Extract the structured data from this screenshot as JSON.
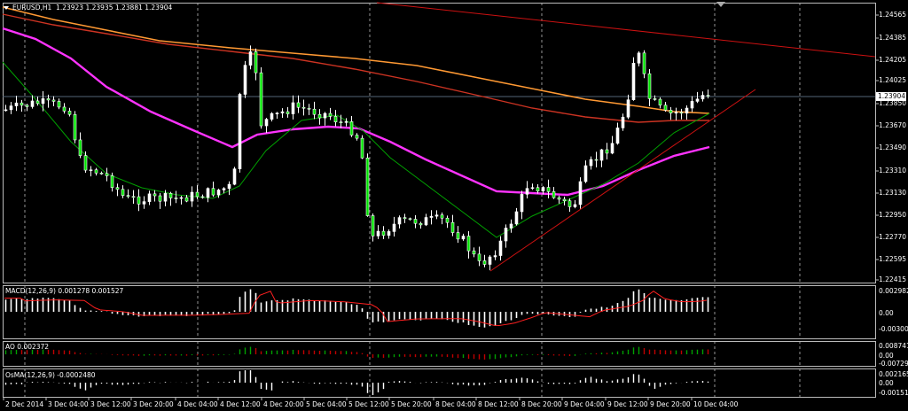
{
  "main": {
    "symbol": "EURUSD,H1",
    "ohlc": "1.23923 1.23935 1.23881 1.23904",
    "current_price": "1.23904",
    "y_labels": [
      "1.24565",
      "1.24385",
      "1.24205",
      "1.24025",
      "1.23850",
      "1.23670",
      "1.23490",
      "1.23310",
      "1.23130",
      "1.22950",
      "1.22770",
      "1.22595",
      "1.22415"
    ]
  },
  "macd": {
    "title": "MACD(12,26,9) 0.001278 0.001527",
    "y_labels": [
      "0.002982",
      "0.00",
      "-0.003004"
    ]
  },
  "ao": {
    "title": "AO 0.002372",
    "y_labels": [
      "0.008741",
      "0.00",
      "-0.007296"
    ]
  },
  "osma": {
    "title": "OsMA(12,26,9) -0.0002480",
    "y_labels": [
      "0.002165",
      "0.00",
      "-0.001515"
    ]
  },
  "x_labels": [
    "2 Dec 2014",
    "3 Dec 04:00",
    "3 Dec 12:00",
    "3 Dec 20:00",
    "4 Dec 04:00",
    "4 Dec 12:00",
    "4 Dec 20:00",
    "5 Dec 04:00",
    "5 Dec 12:00",
    "5 Dec 20:00",
    "8 Dec 04:00",
    "8 Dec 12:00",
    "8 Dec 20:00",
    "9 Dec 04:00",
    "9 Dec 12:00",
    "9 Dec 20:00",
    "10 Dec 04:00"
  ],
  "colors": {
    "background": "#000000",
    "candle": "#ffffff",
    "candle_body": "#00e400",
    "ma_fast": "#00a000",
    "ma_magenta": "#ff33ff",
    "ma_orange": "#ff9933",
    "ma_red": "#cc3322",
    "trendline": "#cc1111",
    "macd_signal": "#ff2020",
    "ao_up": "#00a000",
    "ao_down": "#c00000"
  }
}
